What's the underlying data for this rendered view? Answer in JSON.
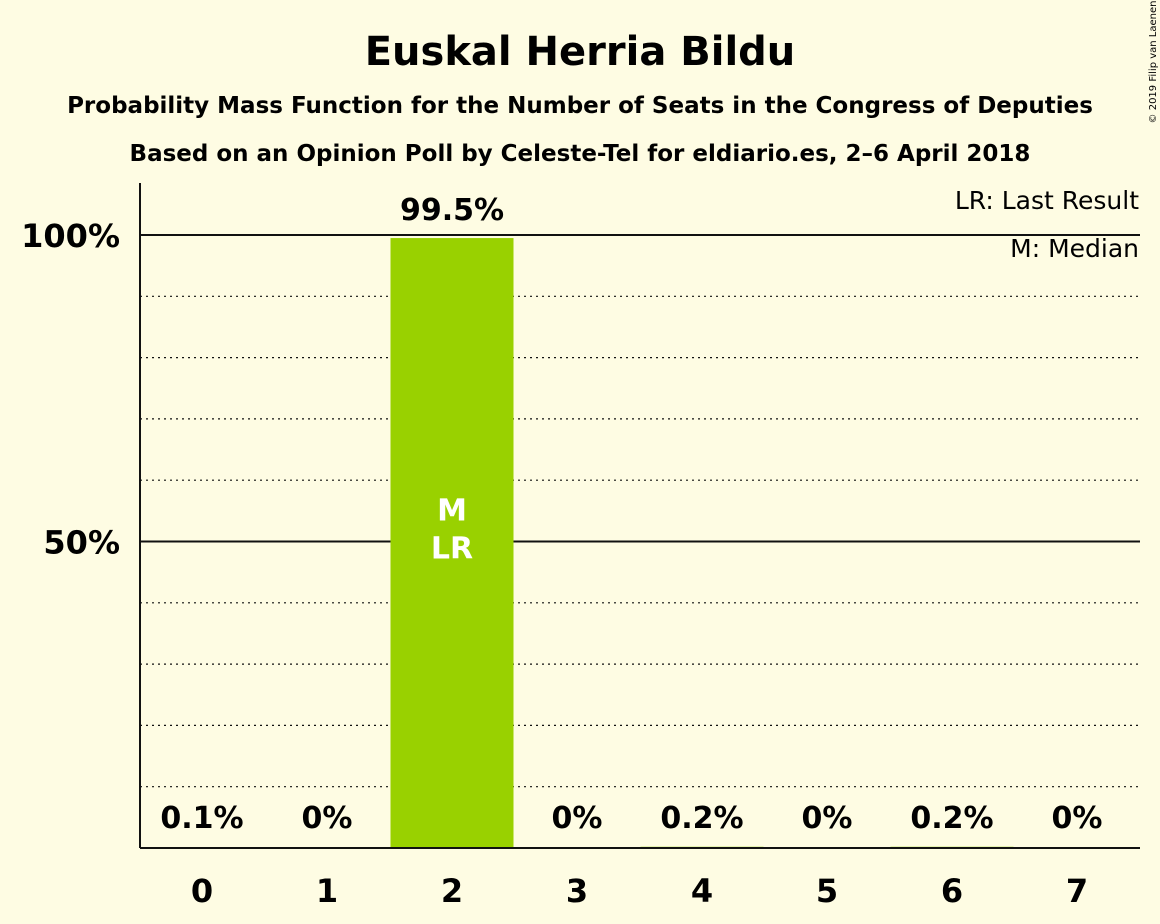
{
  "chart_data": {
    "type": "bar",
    "title": "Euskal Herria Bildu",
    "subtitle": "Probability Mass Function for the Number of Seats in the Congress of Deputies",
    "subtitle2": "Based on an Opinion Poll by Celeste-Tel for eldiario.es, 2–6 April 2018",
    "copyright": "© 2019 Filip van Laenen",
    "categories": [
      "0",
      "1",
      "2",
      "3",
      "4",
      "5",
      "6",
      "7"
    ],
    "values": [
      0.1,
      0,
      99.5,
      0,
      0.2,
      0,
      0.2,
      0
    ],
    "value_labels": [
      "0.1%",
      "0%",
      "99.5%",
      "0%",
      "0.2%",
      "0%",
      "0.2%",
      "0%"
    ],
    "ylim": [
      0,
      100
    ],
    "yticks": [
      {
        "value": 50,
        "label": "50%"
      },
      {
        "value": 100,
        "label": "100%"
      }
    ],
    "minor_grid_step": 10,
    "bar_color": "#99d100",
    "bar_annotations": [
      {
        "category": "2",
        "lines": [
          "M",
          "LR"
        ]
      }
    ],
    "legend": {
      "placement": "top-right",
      "items": [
        "LR: Last Result",
        "M: Median"
      ]
    },
    "grid": true
  }
}
